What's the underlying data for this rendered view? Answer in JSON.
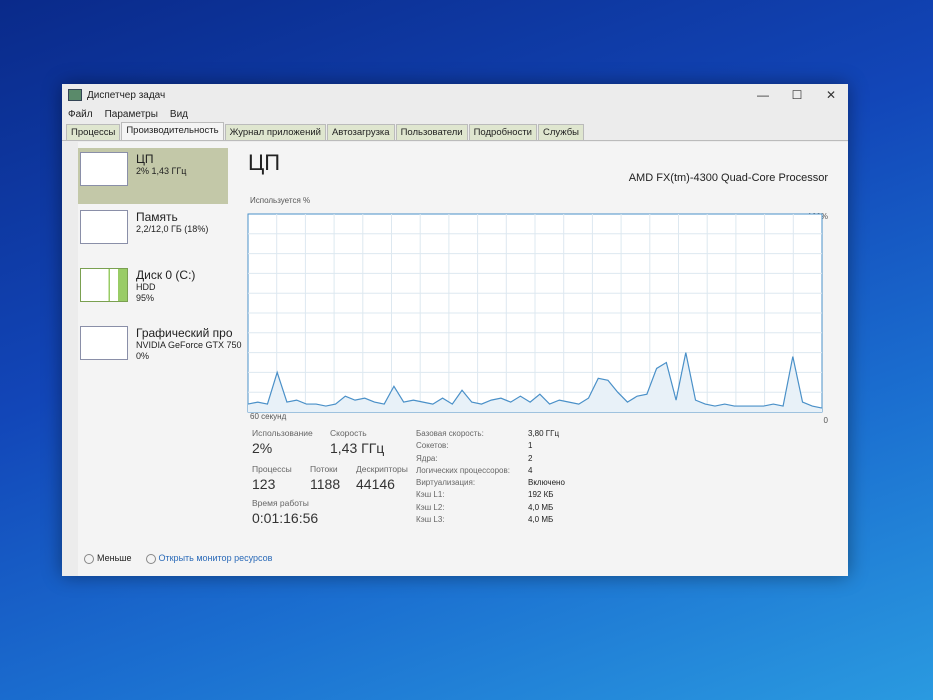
{
  "window": {
    "title": "Диспетчер задач",
    "min": "—",
    "max": "☐",
    "close": "✕"
  },
  "menu": [
    "Файл",
    "Параметры",
    "Вид"
  ],
  "tabs": [
    "Процессы",
    "Производительность",
    "Журнал приложений",
    "Автозагрузка",
    "Пользователи",
    "Подробности",
    "Службы"
  ],
  "sidebar": [
    {
      "name": "ЦП",
      "sub1": "2% 1,43 ГГц",
      "sub2": ""
    },
    {
      "name": "Память",
      "sub1": "2,2/12,0 ГБ (18%)",
      "sub2": ""
    },
    {
      "name": "Диск 0 (C:)",
      "sub1": "HDD",
      "sub2": "95%"
    },
    {
      "name": "Графический про",
      "sub1": "NVIDIA GeForce GTX 750",
      "sub2": "0%"
    }
  ],
  "main": {
    "title": "ЦП",
    "processor": "AMD FX(tm)-4300 Quad-Core Processor",
    "usage_label": "Используется %",
    "max_label": "100%",
    "time_label": "60 секунд",
    "min_label": "0"
  },
  "stats": {
    "usage_l": "Использование",
    "usage": "2%",
    "speed_l": "Скорость",
    "speed": "1,43 ГГц",
    "proc_l": "Процессы",
    "proc": "123",
    "thr_l": "Потоки",
    "thr": "1188",
    "desc_l": "Дескрипторы",
    "desc": "44146",
    "up_l": "Время работы",
    "up": "0:01:16:56"
  },
  "specs": [
    [
      "Базовая скорость:",
      "3,80 ГГц"
    ],
    [
      "Сокетов:",
      "1"
    ],
    [
      "Ядра:",
      "2"
    ],
    [
      "Логических процессоров:",
      "4"
    ],
    [
      "Виртуализация:",
      "Включено"
    ],
    [
      "Кэш L1:",
      "192 КБ"
    ],
    [
      "Кэш L2:",
      "4,0 МБ"
    ],
    [
      "Кэш L3:",
      "4,0 МБ"
    ]
  ],
  "footer": {
    "less": "Меньше",
    "monitor": "Открыть монитор ресурсов"
  },
  "chart_data": {
    "type": "line",
    "ylabel": "Используется %",
    "ylim": [
      0,
      100
    ],
    "xlabel": "60 секунд",
    "grid": true,
    "color": "#4a90c8",
    "values": [
      4,
      5,
      4,
      20,
      5,
      6,
      4,
      4,
      3,
      4,
      8,
      6,
      7,
      5,
      4,
      13,
      5,
      6,
      5,
      4,
      7,
      4,
      11,
      5,
      4,
      6,
      7,
      5,
      8,
      5,
      9,
      4,
      6,
      5,
      4,
      7,
      17,
      16,
      10,
      5,
      8,
      9,
      22,
      25,
      6,
      30,
      6,
      4,
      3,
      4,
      3,
      3,
      3,
      3,
      4,
      3,
      28,
      5,
      3,
      2
    ]
  }
}
